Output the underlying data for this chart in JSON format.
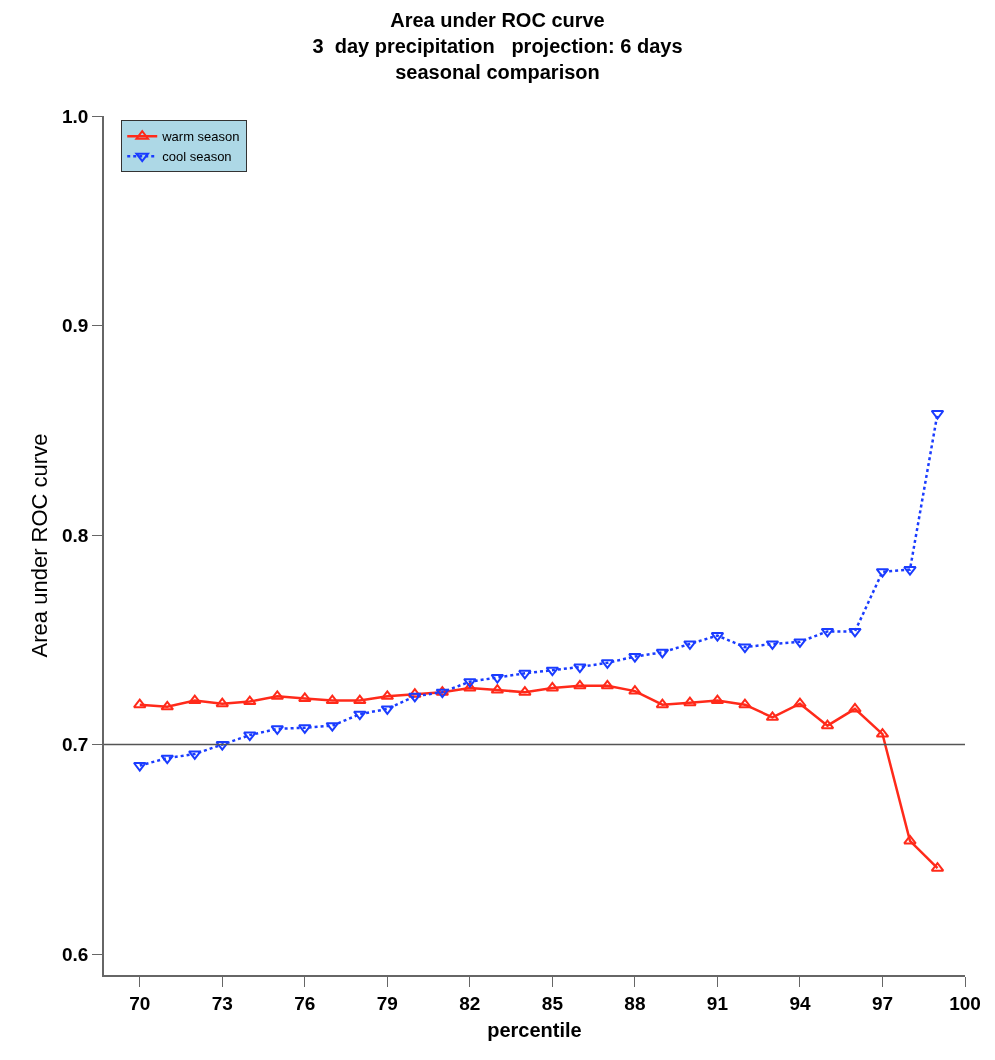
{
  "chart_data": {
    "type": "line",
    "title": "Area under ROC curve\n3  day precipitation   projection: 6 days\nseasonal comparison",
    "xlabel": "percentile",
    "ylabel": "Area under ROC curve",
    "x": [
      70,
      71,
      72,
      73,
      74,
      75,
      76,
      77,
      78,
      79,
      80,
      81,
      82,
      83,
      84,
      85,
      86,
      87,
      88,
      89,
      90,
      91,
      92,
      93,
      94,
      95,
      96,
      97,
      98,
      99
    ],
    "series": [
      {
        "name": "warm season",
        "color": "#ff2a1a",
        "line_style": "solid",
        "marker": "triangle-up",
        "values": [
          0.719,
          0.718,
          0.721,
          0.7195,
          0.7205,
          0.723,
          0.722,
          0.721,
          0.721,
          0.723,
          0.724,
          0.725,
          0.727,
          0.726,
          0.725,
          0.727,
          0.728,
          0.728,
          0.7255,
          0.719,
          0.72,
          0.721,
          0.719,
          0.713,
          0.7195,
          0.709,
          0.717,
          0.705,
          0.654,
          0.641
        ]
      },
      {
        "name": "cool season",
        "color": "#1a3cff",
        "line_style": "dotted",
        "marker": "triangle-down",
        "values": [
          0.69,
          0.6935,
          0.6955,
          0.7,
          0.7045,
          0.7075,
          0.708,
          0.709,
          0.7145,
          0.717,
          0.723,
          0.725,
          0.73,
          0.732,
          0.734,
          0.7355,
          0.737,
          0.739,
          0.742,
          0.744,
          0.748,
          0.752,
          0.7465,
          0.748,
          0.749,
          0.754,
          0.754,
          0.7825,
          0.7835,
          0.858
        ]
      }
    ],
    "xlim": [
      68.7,
      100
    ],
    "xticks": [
      70,
      73,
      76,
      79,
      82,
      85,
      88,
      91,
      94,
      97,
      100
    ],
    "ylim": [
      0.59,
      1.0
    ],
    "yticks": [
      0.6,
      0.7,
      0.8,
      0.9,
      {
        "value": 1,
        "label": "1.0"
      }
    ],
    "ref_lines": [
      {
        "axis": "y",
        "value": 0.7,
        "color": "#555555"
      }
    ],
    "grid": false,
    "legend": "top left"
  }
}
